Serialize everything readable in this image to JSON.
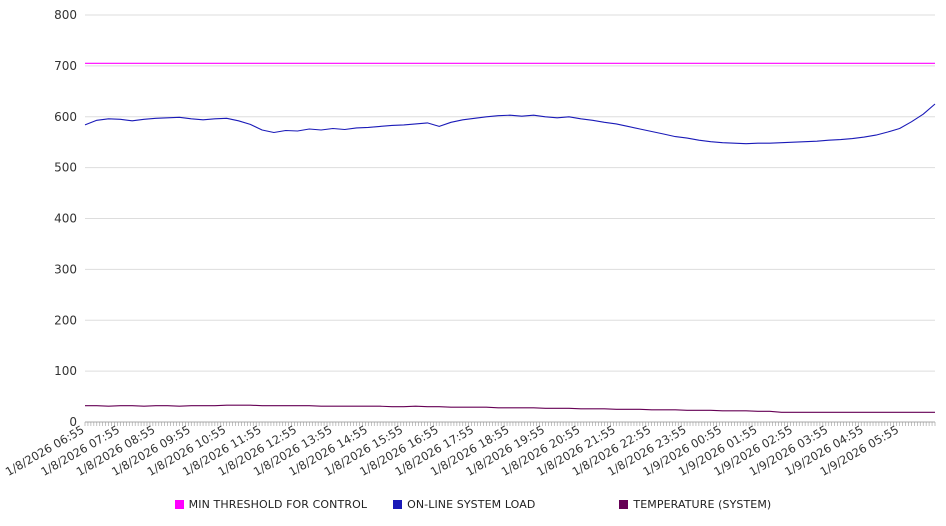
{
  "chart_data": {
    "type": "line",
    "title": "",
    "xlabel": "",
    "ylabel": "",
    "ylim": [
      0,
      800
    ],
    "ytick_step": 100,
    "grid": "horizontal",
    "legend_position": "bottom",
    "x_axis_minor_tick_minutes": 5,
    "x_total_minutes": 1440,
    "category_step_minutes": 60,
    "categories": [
      "1/8/2026 06:55",
      "1/8/2026 07:55",
      "1/8/2026 08:55",
      "1/8/2026 09:55",
      "1/8/2026 10:55",
      "1/8/2026 11:55",
      "1/8/2026 12:55",
      "1/8/2026 13:55",
      "1/8/2026 14:55",
      "1/8/2026 15:55",
      "1/8/2026 16:55",
      "1/8/2026 17:55",
      "1/8/2026 18:55",
      "1/8/2026 19:55",
      "1/8/2026 20:55",
      "1/8/2026 21:55",
      "1/8/2026 22:55",
      "1/8/2026 23:55",
      "1/9/2026 00:55",
      "1/9/2026 01:55",
      "1/9/2026 02:55",
      "1/9/2026 03:55",
      "1/9/2026 04:55",
      "1/9/2026 05:55"
    ],
    "series": [
      {
        "name": "MIN THRESHOLD FOR CONTROL",
        "color": "#ff00ff",
        "values": [
          705,
          705
        ]
      },
      {
        "name": "ON-LINE SYSTEM LOAD",
        "color": "#1a1ab8",
        "values": [
          584,
          593,
          596,
          595,
          592,
          595,
          597,
          598,
          599,
          596,
          594,
          596,
          597,
          592,
          585,
          574,
          569,
          573,
          572,
          576,
          574,
          577,
          575,
          578,
          579,
          581,
          583,
          584,
          586,
          588,
          581,
          589,
          594,
          597,
          600,
          602,
          603,
          601,
          603,
          600,
          598,
          600,
          596,
          593,
          589,
          586,
          581,
          576,
          571,
          566,
          561,
          558,
          554,
          551,
          549,
          548,
          547,
          548,
          548,
          549,
          550,
          551,
          552,
          554,
          555,
          557,
          560,
          564,
          570,
          577,
          590,
          605,
          625
        ]
      },
      {
        "name": "TEMPERATURE (SYSTEM)",
        "color": "#660055",
        "values": [
          32,
          32,
          31,
          32,
          32,
          31,
          32,
          32,
          31,
          32,
          32,
          32,
          33,
          33,
          33,
          32,
          32,
          32,
          32,
          32,
          31,
          31,
          31,
          31,
          31,
          31,
          30,
          30,
          31,
          30,
          30,
          29,
          29,
          29,
          29,
          28,
          28,
          28,
          28,
          27,
          27,
          27,
          26,
          26,
          26,
          25,
          25,
          25,
          24,
          24,
          24,
          23,
          23,
          23,
          22,
          22,
          22,
          21,
          21,
          19,
          19,
          19,
          19,
          19,
          19,
          19,
          19,
          19,
          19,
          19,
          19,
          19,
          19
        ]
      }
    ],
    "axis_text_color": "#333333",
    "gridline_color": "#dddddd",
    "axis_line_color": "#aaaaaa",
    "tick_color": "#999999"
  }
}
